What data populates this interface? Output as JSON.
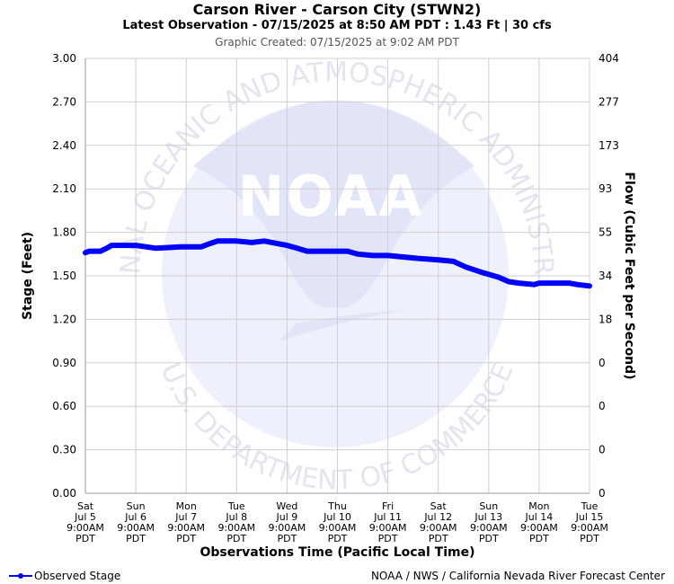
{
  "title": "Carson River - Carson City (STWN2)",
  "subtitle": "Latest Observation - 07/15/2025 at 8:50 AM PDT : 1.43 Ft | 30 cfs",
  "graphic_created": "Graphic Created: 07/15/2025 at 9:02 AM PDT",
  "watermark": {
    "center_text": "NOAA",
    "ring_top": "NATIONAL OCEANIC AND ATMOSPHERIC ADMINISTRATION",
    "ring_bottom": "U.S. DEPARTMENT OF COMMERCE",
    "color": "#e8eaf8"
  },
  "legend": {
    "observed_label": "Observed Stage"
  },
  "credit": "NOAA / NWS / California Nevada River Forecast Center",
  "chart_data": {
    "type": "line",
    "title": "Carson River - Carson City (STWN2)",
    "xlabel": "Observations Time (Pacific Local Time)",
    "ylabel": "Stage (Feet)",
    "y2label": "Flow (Cubic Feet per Second)",
    "ylim": [
      0,
      3
    ],
    "grid": true,
    "y_ticks": [
      "0.00",
      "0.30",
      "0.60",
      "0.90",
      "1.20",
      "1.50",
      "1.80",
      "2.10",
      "2.40",
      "2.70",
      "3.00"
    ],
    "y2_ticks": [
      "0",
      "0",
      "0",
      "0",
      "18",
      "34",
      "55",
      "93",
      "173",
      "277",
      "404"
    ],
    "x_ticks": [
      [
        "Sat",
        "Jul 5",
        "9:00AM",
        "PDT"
      ],
      [
        "Sun",
        "Jul 6",
        "9:00AM",
        "PDT"
      ],
      [
        "Mon",
        "Jul 7",
        "9:00AM",
        "PDT"
      ],
      [
        "Tue",
        "Jul 8",
        "9:00AM",
        "PDT"
      ],
      [
        "Wed",
        "Jul 9",
        "9:00AM",
        "PDT"
      ],
      [
        "Thu",
        "Jul 10",
        "9:00AM",
        "PDT"
      ],
      [
        "Fri",
        "Jul 11",
        "9:00AM",
        "PDT"
      ],
      [
        "Sat",
        "Jul 12",
        "9:00AM",
        "PDT"
      ],
      [
        "Sun",
        "Jul 13",
        "9:00AM",
        "PDT"
      ],
      [
        "Mon",
        "Jul 14",
        "9:00AM",
        "PDT"
      ],
      [
        "Tue",
        "Jul 15",
        "9:00AM",
        "PDT"
      ]
    ],
    "series": [
      {
        "name": "Observed Stage",
        "color": "#0000ff",
        "points": [
          [
            0.0,
            1.66
          ],
          [
            0.08,
            1.67
          ],
          [
            0.3,
            1.67
          ],
          [
            0.42,
            1.69
          ],
          [
            0.52,
            1.71
          ],
          [
            0.75,
            1.71
          ],
          [
            0.85,
            1.71
          ],
          [
            1.0,
            1.71
          ],
          [
            1.2,
            1.7
          ],
          [
            1.4,
            1.69
          ],
          [
            1.9,
            1.7
          ],
          [
            2.3,
            1.7
          ],
          [
            2.45,
            1.72
          ],
          [
            2.62,
            1.74
          ],
          [
            3.0,
            1.74
          ],
          [
            3.3,
            1.73
          ],
          [
            3.55,
            1.74
          ],
          [
            3.7,
            1.73
          ],
          [
            4.0,
            1.71
          ],
          [
            4.2,
            1.69
          ],
          [
            4.4,
            1.67
          ],
          [
            4.9,
            1.67
          ],
          [
            5.2,
            1.67
          ],
          [
            5.4,
            1.65
          ],
          [
            5.7,
            1.64
          ],
          [
            6.0,
            1.64
          ],
          [
            6.3,
            1.63
          ],
          [
            6.6,
            1.62
          ],
          [
            7.0,
            1.61
          ],
          [
            7.3,
            1.6
          ],
          [
            7.55,
            1.56
          ],
          [
            7.9,
            1.52
          ],
          [
            8.2,
            1.49
          ],
          [
            8.4,
            1.46
          ],
          [
            8.6,
            1.45
          ],
          [
            8.9,
            1.44
          ],
          [
            9.0,
            1.45
          ],
          [
            9.3,
            1.45
          ],
          [
            9.6,
            1.45
          ],
          [
            9.75,
            1.44
          ],
          [
            10.0,
            1.43
          ]
        ]
      }
    ]
  }
}
